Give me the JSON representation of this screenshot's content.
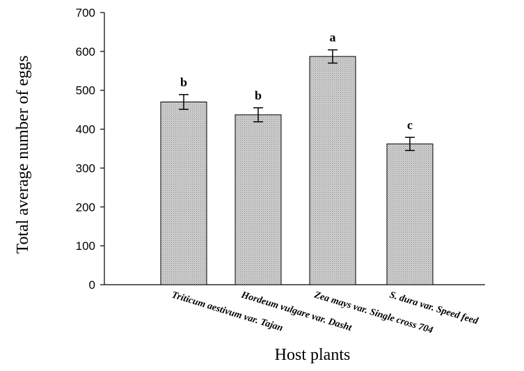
{
  "chart_data": {
    "type": "bar",
    "title": "",
    "xlabel": "Host plants",
    "ylabel": "Total average number of eggs",
    "ylim": [
      0,
      700
    ],
    "yticks": [
      0,
      100,
      200,
      300,
      400,
      500,
      600,
      700
    ],
    "grid": false,
    "legend": "none",
    "categories": [
      "Triticum aestivum var. Tajan",
      "Hordeum vulgare var. Dasht",
      "Zea mays var. Single cross 704",
      "S. dura var. Speed feed"
    ],
    "values": [
      470,
      437,
      587,
      362
    ],
    "errors": [
      19,
      18,
      17,
      17
    ],
    "significance_labels": [
      "b",
      "b",
      "a",
      "c"
    ],
    "bar_color": "#c8c8c8"
  }
}
